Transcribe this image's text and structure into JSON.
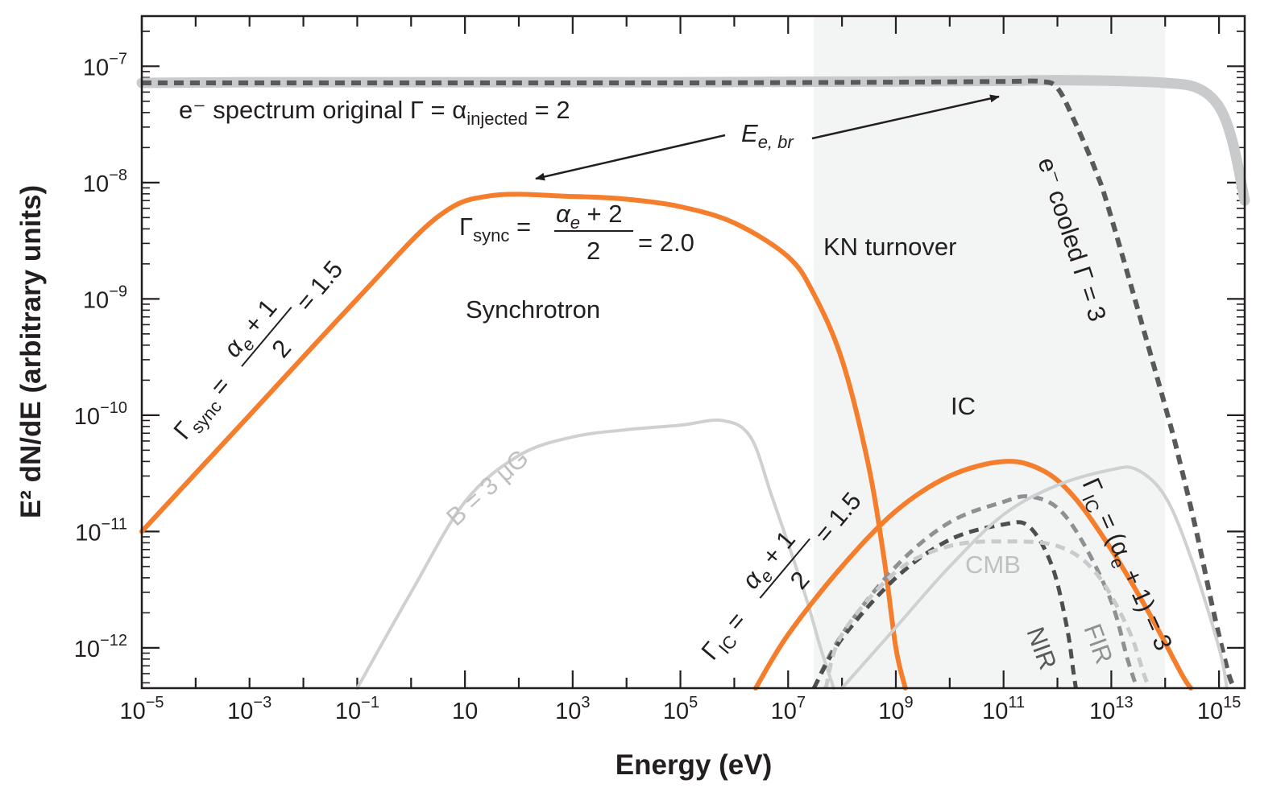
{
  "chart_data": {
    "type": "line",
    "xlabel": "Energy (eV)",
    "ylabel": "E² dN/dE (arbitrary units)",
    "x_scale": "log",
    "y_scale": "log",
    "xlim": [
      1e-05,
      3000000000000000.0
    ],
    "ylim": [
      4.5e-13,
      2.7e-07
    ],
    "x_ticks": [
      {
        "value": 1e-05,
        "base": "10",
        "exp": "−5"
      },
      {
        "value": 0.001,
        "base": "10",
        "exp": "−3"
      },
      {
        "value": 0.1,
        "base": "10",
        "exp": "−1"
      },
      {
        "value": 10,
        "base": "10",
        "exp": ""
      },
      {
        "value": 1000.0,
        "base": "10",
        "exp": "3"
      },
      {
        "value": 100000.0,
        "base": "10",
        "exp": "5"
      },
      {
        "value": 10000000.0,
        "base": "10",
        "exp": "7"
      },
      {
        "value": 1000000000.0,
        "base": "10",
        "exp": "9"
      },
      {
        "value": 100000000000.0,
        "base": "10",
        "exp": "11"
      },
      {
        "value": 10000000000000.0,
        "base": "10",
        "exp": "13"
      },
      {
        "value": 1000000000000000.0,
        "base": "10",
        "exp": "15"
      }
    ],
    "y_ticks": [
      {
        "value": 1e-07,
        "base": "10",
        "exp": "−7"
      },
      {
        "value": 1e-08,
        "base": "10",
        "exp": "−8"
      },
      {
        "value": 1e-09,
        "base": "10",
        "exp": "−9"
      },
      {
        "value": 1e-10,
        "base": "10",
        "exp": "−10"
      },
      {
        "value": 1e-11,
        "base": "10",
        "exp": "−11"
      },
      {
        "value": 1e-12,
        "base": "10",
        "exp": "−12"
      }
    ],
    "shaded_region": {
      "label": "KN turnover",
      "x_range": [
        30000000.0,
        100000000000000.0
      ],
      "color": "#f3f5f4"
    },
    "series": [
      {
        "style": "solid",
        "color": "#c9cacb",
        "width": 13,
        "points": [
          [
            1e-05,
            7.2e-08
          ],
          [
            0.001,
            7.3e-08
          ],
          [
            1,
            7.3e-08
          ],
          [
            100000.0,
            7.3e-08
          ],
          [
            1000000000.0,
            7.4e-08
          ],
          [
            100000000000.0,
            7.5e-08
          ],
          [
            1000000000000.0,
            7.6e-08
          ],
          [
            10000000000000.0,
            7.5e-08
          ],
          [
            100000000000000.0,
            7.2e-08
          ],
          [
            400000000000000.0,
            6.5e-08
          ],
          [
            1000000000000000.0,
            4.5e-08
          ],
          [
            1800000000000000.0,
            2.2e-08
          ],
          [
            3000000000000000.0,
            7e-09
          ]
        ]
      },
      {
        "style": "dashed",
        "color": "#58595b",
        "width": 6,
        "points": [
          [
            1e-05,
            7.2e-08
          ],
          [
            0.001,
            7.2e-08
          ],
          [
            1,
            7.2e-08
          ],
          [
            100000.0,
            7.2e-08
          ],
          [
            1000000000.0,
            7.3e-08
          ],
          [
            100000000000.0,
            7.4e-08
          ],
          [
            500000000000.0,
            7.4e-08
          ],
          [
            1000000000000.0,
            6.5e-08
          ],
          [
            2000000000000.0,
            3.5e-08
          ],
          [
            5000000000000.0,
            1.3e-08
          ],
          [
            10000000000000.0,
            5e-09
          ],
          [
            100000000000000.0,
            1.2e-10
          ],
          [
            200000000000000.0,
            3.5e-11
          ],
          [
            400000000000000.0,
            9e-12
          ],
          [
            800000000000000.0,
            2e-12
          ],
          [
            1500000000000000.0,
            6e-13
          ],
          [
            2000000000000000.0,
            4.5e-13
          ]
        ]
      },
      {
        "style": "solid",
        "color": "#f57e2d",
        "width": 6,
        "points": [
          [
            1e-05,
            1e-11
          ],
          [
            0.001,
            1e-10
          ],
          [
            0.1,
            1e-09
          ],
          [
            3,
            5e-09
          ],
          [
            30,
            7.7e-09
          ],
          [
            1000.0,
            7.6e-09
          ],
          [
            10000.0,
            7.2e-09
          ],
          [
            100000.0,
            6.2e-09
          ],
          [
            1000000.0,
            4.5e-09
          ],
          [
            10000000.0,
            2.3e-09
          ],
          [
            30000000.0,
            1.1e-09
          ],
          [
            100000000.0,
            3e-10
          ],
          [
            300000000.0,
            4e-11
          ],
          [
            600000000.0,
            6e-12
          ],
          [
            1000000000.0,
            1e-12
          ],
          [
            1500000000.0,
            4.5e-13
          ]
        ]
      },
      {
        "style": "solid",
        "color": "#cfd0d1",
        "width": 4,
        "points": [
          [
            0.1,
            4.5e-13
          ],
          [
            1,
            3e-12
          ],
          [
            10,
            1.8e-11
          ],
          [
            100,
            4.5e-11
          ],
          [
            1000.0,
            6.5e-11
          ],
          [
            10000.0,
            7.5e-11
          ],
          [
            100000.0,
            8.2e-11
          ],
          [
            600000.0,
            9e-11
          ],
          [
            2000000.0,
            6.5e-11
          ],
          [
            5000000.0,
            2e-11
          ],
          [
            20000000.0,
            3e-12
          ],
          [
            40000000.0,
            1e-12
          ],
          [
            70000000.0,
            4.5e-13
          ]
        ]
      },
      {
        "style": "solid",
        "color": "#f57e2d",
        "width": 6,
        "points": [
          [
            2500000.0,
            4.5e-13
          ],
          [
            10000000.0,
            1.3e-12
          ],
          [
            100000000.0,
            5e-12
          ],
          [
            1000000000.0,
            1.5e-11
          ],
          [
            10000000000.0,
            3e-11
          ],
          [
            100000000000.0,
            4e-11
          ],
          [
            500000000000.0,
            3.4e-11
          ],
          [
            2000000000000.0,
            2e-11
          ],
          [
            10000000000000.0,
            7e-12
          ],
          [
            50000000000000.0,
            2e-12
          ],
          [
            200000000000000.0,
            6e-13
          ],
          [
            300000000000000.0,
            4.5e-13
          ]
        ]
      },
      {
        "style": "dashed",
        "color": "#8e9093",
        "width": 5,
        "points": [
          [
            30000000.0,
            4.5e-13
          ],
          [
            100000000.0,
            1.3e-12
          ],
          [
            1000000000.0,
            5e-12
          ],
          [
            10000000000.0,
            1.2e-11
          ],
          [
            100000000000.0,
            1.8e-11
          ],
          [
            300000000000.0,
            2e-11
          ],
          [
            1000000000000.0,
            1.6e-11
          ],
          [
            3000000000000.0,
            8e-12
          ],
          [
            10000000000000.0,
            2.5e-12
          ],
          [
            20000000000000.0,
            8e-13
          ],
          [
            30000000000000.0,
            4.5e-13
          ]
        ]
      },
      {
        "style": "dashed",
        "color": "#4d4e50",
        "width": 5,
        "points": [
          [
            30000000.0,
            4.5e-13
          ],
          [
            100000000.0,
            1.2e-12
          ],
          [
            1000000000.0,
            4e-12
          ],
          [
            10000000000.0,
            8.5e-12
          ],
          [
            100000000000.0,
            1.15e-11
          ],
          [
            300000000000.0,
            1.1e-11
          ],
          [
            800000000000.0,
            5e-12
          ],
          [
            1500000000000.0,
            1.5e-12
          ],
          [
            2000000000000.0,
            6e-13
          ],
          [
            2200000000000.0,
            4.5e-13
          ]
        ]
      },
      {
        "style": "dashed",
        "color": "#c9cacb",
        "width": 5,
        "points": [
          [
            50000000.0,
            4.5e-13
          ],
          [
            100000000.0,
            1.3e-12
          ],
          [
            1000000000.0,
            4.5e-12
          ],
          [
            10000000000.0,
            7.5e-12
          ],
          [
            100000000000.0,
            8.2e-12
          ],
          [
            1000000000000.0,
            7.5e-12
          ],
          [
            5000000000000.0,
            4.5e-12
          ],
          [
            20000000000000.0,
            1.5e-12
          ],
          [
            40000000000000.0,
            6e-13
          ],
          [
            50000000000000.0,
            4.5e-13
          ]
        ]
      },
      {
        "style": "solid",
        "color": "#cfd0d1",
        "width": 4,
        "points": [
          [
            100000000.0,
            4.5e-13
          ],
          [
            1000000000.0,
            1.5e-12
          ],
          [
            10000000000.0,
            5e-12
          ],
          [
            100000000000.0,
            1.4e-11
          ],
          [
            1000000000000.0,
            2.5e-11
          ],
          [
            10000000000000.0,
            3.4e-11
          ],
          [
            30000000000000.0,
            3.4e-11
          ],
          [
            100000000000000.0,
            2e-11
          ],
          [
            300000000000000.0,
            6e-12
          ],
          [
            1000000000000000.0,
            1e-12
          ],
          [
            1400000000000000.0,
            4.5e-13
          ]
        ]
      }
    ],
    "annotations": [
      {
        "id": "orig",
        "text": "e⁻ spectrum original Γ = α",
        "sub": "injected",
        "tail": " = 2"
      },
      {
        "id": "ebr",
        "text": "E",
        "sub": "e, br"
      },
      {
        "id": "kn",
        "text": "KN turnover"
      },
      {
        "id": "syn",
        "text": "Synchrotron"
      },
      {
        "id": "ic",
        "text": "IC"
      },
      {
        "id": "bfield",
        "text": "B = 3 μG"
      },
      {
        "id": "cmb",
        "text": "CMB"
      },
      {
        "id": "nir",
        "text": "NIR"
      },
      {
        "id": "fir",
        "text": "FIR"
      },
      {
        "id": "cooled",
        "text": "e⁻ cooled Γ = 3"
      },
      {
        "id": "gsync20",
        "pre": "Γ",
        "presub": "sync",
        "num": "α",
        "numsub": "e",
        "numtail": " + 2",
        "den": "2",
        "tail": "= 2.0"
      },
      {
        "id": "gsync15",
        "pre": "Γ",
        "presub": "sync",
        "num": "α",
        "numsub": "e",
        "numtail": " + 1",
        "den": "2",
        "tail": "= 1.5"
      },
      {
        "id": "gic15",
        "pre": "Γ",
        "presub": "IC",
        "num": "α",
        "numsub": "e",
        "numtail": " + 1",
        "den": "2",
        "tail": "= 1.5"
      },
      {
        "id": "gic3",
        "text": "Γ",
        "sub": "IC",
        "tail": " = (α",
        "sub2": "e",
        "tail2": " + 1) = 3"
      }
    ]
  }
}
